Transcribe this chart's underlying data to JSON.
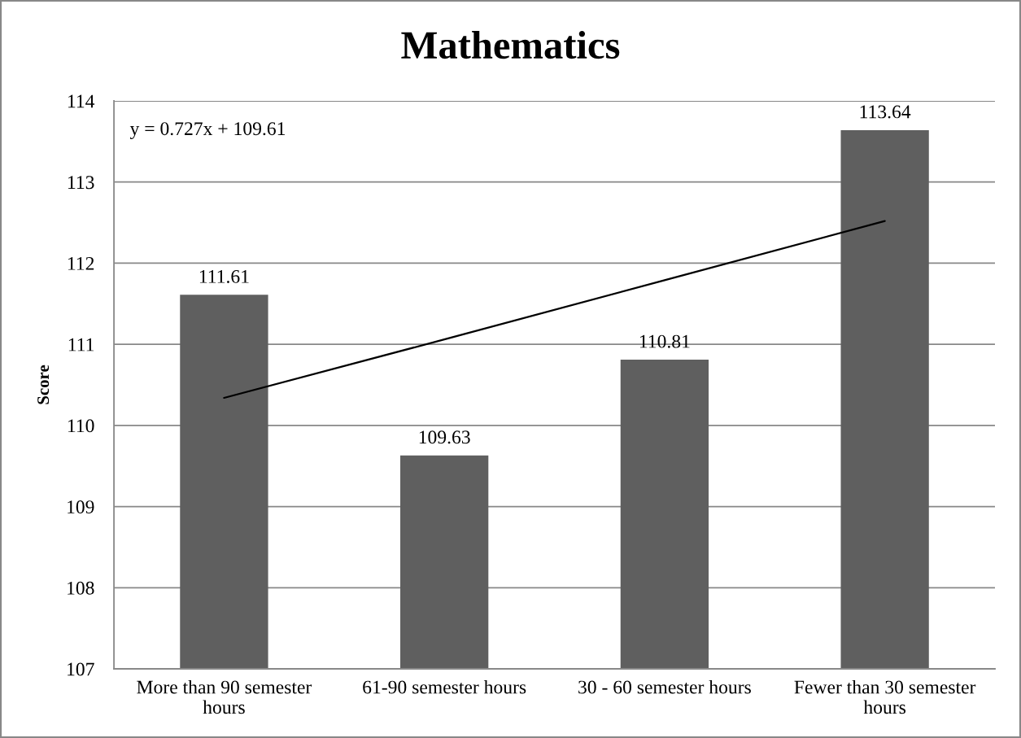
{
  "chart_data": {
    "type": "bar",
    "title": "Mathematics",
    "ylabel": "Score",
    "categories": [
      "More than 90 semester hours",
      "61-90 semester hours",
      "30 - 60 semester hours",
      "Fewer than 30 semester hours"
    ],
    "series": [
      {
        "color": "#5f5f5f",
        "values": [
          111.61,
          109.63,
          110.81,
          113.64
        ],
        "value_labels": [
          "111.61",
          "109.63",
          "110.81",
          "113.64"
        ]
      },
      {
        "type": "line",
        "color": "#000000",
        "values": [
          110.34,
          111.06,
          111.79,
          112.52
        ]
      }
    ],
    "ylim": [
      107,
      114
    ],
    "yticks": [
      107,
      108,
      109,
      110,
      111,
      112,
      113,
      114
    ],
    "grid": "y",
    "annotations": [
      "y = 0.727x + 109.61"
    ]
  }
}
